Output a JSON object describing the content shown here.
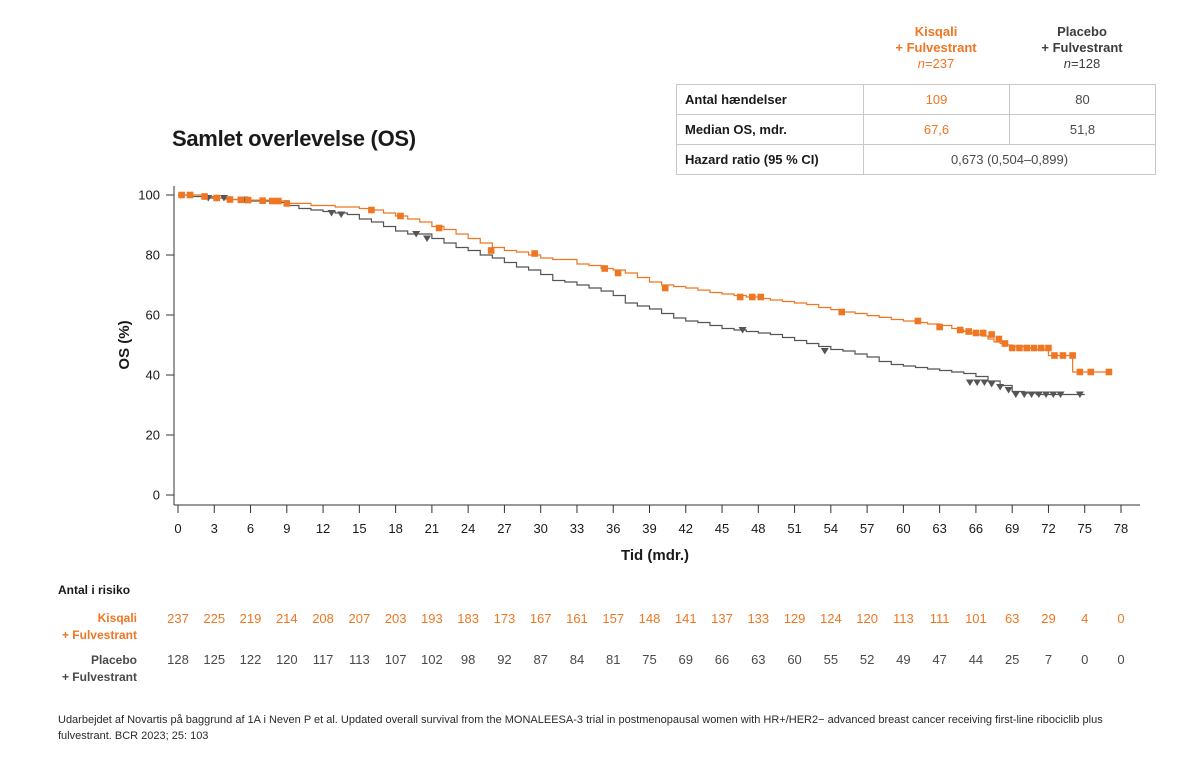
{
  "title": "Samlet overlevelse (OS)",
  "table": {
    "kisqali_header": [
      "Kisqali",
      "+ Fulvestrant"
    ],
    "kisqali_n_prefix": "n",
    "kisqali_n_value": "=237",
    "placebo_header": [
      "Placebo",
      "+ Fulvestrant"
    ],
    "placebo_n_prefix": "n",
    "placebo_n_value": "=128",
    "rows": [
      {
        "label": "Antal hændelser",
        "kisqali": "109",
        "placebo": "80"
      },
      {
        "label": "Median OS, mdr.",
        "kisqali": "67,6",
        "placebo": "51,8"
      }
    ],
    "hr_label": "Hazard ratio (95 % CI)",
    "hr_value": "0,673 (0,504–0,899)"
  },
  "colors": {
    "kisqali": "#ef7622",
    "placebo": "#555555",
    "axis": "#333333"
  },
  "chart_data": {
    "type": "line",
    "title": "Samlet overlevelse (OS)",
    "xlabel": "Tid (mdr.)",
    "ylabel": "OS (%)",
    "xlim": [
      0,
      78
    ],
    "ylim": [
      0,
      100
    ],
    "xticks": [
      0,
      3,
      6,
      9,
      12,
      15,
      18,
      21,
      24,
      27,
      30,
      33,
      36,
      39,
      42,
      45,
      48,
      51,
      54,
      57,
      60,
      63,
      66,
      69,
      72,
      75,
      78
    ],
    "yticks": [
      0,
      20,
      40,
      60,
      80,
      100
    ],
    "series": [
      {
        "name": "Kisqali + Fulvestrant",
        "color": "#ef7622",
        "marker": "square",
        "x": [
          0,
          1,
          2,
          3,
          4,
          6,
          8,
          9,
          11,
          13,
          15,
          16,
          17,
          18,
          19,
          20,
          21,
          22,
          23,
          24,
          25,
          26,
          27,
          28,
          29,
          30,
          31,
          33,
          34,
          35,
          36,
          37,
          38,
          39,
          40,
          41,
          42,
          43,
          44,
          45,
          46,
          47,
          48,
          49,
          50,
          51,
          52,
          53,
          54,
          55,
          56,
          57,
          58,
          59,
          60,
          61,
          62,
          63,
          64,
          64.5,
          65,
          65.5,
          66,
          66.5,
          67,
          67.5,
          68,
          68.5,
          69,
          70,
          71,
          72,
          73,
          74,
          75,
          77
        ],
        "y": [
          100,
          100,
          99.5,
          99,
          98.5,
          98.3,
          98,
          97.2,
          96.5,
          96,
          95.5,
          95,
          94,
          93,
          92,
          91,
          89.5,
          88.5,
          87,
          85.5,
          84,
          82.5,
          81.5,
          81,
          80,
          79,
          78.5,
          77,
          76.5,
          75.5,
          75,
          74,
          72.5,
          71,
          70,
          69.5,
          69,
          68.3,
          67.5,
          67,
          66.5,
          66,
          65.5,
          65,
          64.5,
          64,
          63.5,
          62.5,
          61.8,
          61,
          60.5,
          59.8,
          59.2,
          58.5,
          58,
          57.5,
          57,
          56.5,
          55.5,
          55,
          54.5,
          54,
          53.5,
          53,
          52,
          51,
          50.5,
          50,
          49.5,
          49,
          48.5,
          46.5,
          46.5,
          41,
          41,
          41
        ],
        "censor_x": [
          0.3,
          1,
          2.2,
          3.2,
          4.3,
          5.2,
          5.8,
          7,
          7.8,
          8.3,
          9,
          16,
          18.4,
          21.6,
          25.9,
          29.5,
          35.3,
          36.4,
          40.3,
          46.5,
          47.5,
          48.2,
          54.9,
          61.2,
          63,
          64.7,
          65.4,
          66,
          66.6,
          67.3,
          67.9,
          68.4,
          69,
          69.6,
          70.2,
          70.8,
          71.4,
          72,
          72.5,
          73.2,
          74,
          74.6,
          75.5,
          77
        ],
        "censor_y": [
          100,
          100,
          99.5,
          99,
          98.5,
          98.4,
          98.3,
          98.1,
          98,
          98,
          97.2,
          95,
          93,
          89,
          81.5,
          80.5,
          75.5,
          74,
          69,
          66,
          66,
          66,
          61,
          58,
          56,
          55,
          54.5,
          54,
          54,
          53.5,
          52,
          50.5,
          49,
          49,
          49,
          49,
          49,
          49,
          46.5,
          46.5,
          46.5,
          41,
          41,
          41
        ]
      },
      {
        "name": "Placebo + Fulvestrant",
        "color": "#555555",
        "marker": "triangle",
        "x": [
          0,
          1,
          2,
          3,
          4,
          6,
          8,
          9,
          10,
          11,
          12,
          13,
          14,
          15,
          16,
          17,
          18,
          19,
          20,
          21,
          22,
          23,
          24,
          25,
          26,
          27,
          28,
          29,
          30,
          31,
          32,
          33,
          34,
          35,
          36,
          37,
          38,
          39,
          40,
          41,
          42,
          43,
          44,
          45,
          46,
          47,
          48,
          49,
          50,
          51,
          52,
          53,
          54,
          55,
          56,
          57,
          58,
          59,
          60,
          61,
          62,
          63,
          64,
          65,
          66,
          67,
          68,
          69,
          70,
          71,
          72,
          73,
          74,
          75
        ],
        "y": [
          100,
          99.5,
          99,
          99,
          98.5,
          98,
          97.5,
          96.5,
          95.5,
          95,
          94.5,
          94,
          93.5,
          92,
          91,
          89.5,
          88,
          87,
          87,
          85.5,
          84,
          82.5,
          81.5,
          80,
          79,
          77.5,
          76,
          75,
          73.5,
          71.5,
          71,
          70,
          69,
          68,
          66.5,
          64,
          63,
          62,
          60.5,
          59,
          58,
          57.5,
          56.5,
          55.5,
          55,
          54.5,
          54,
          53.5,
          52.5,
          51.5,
          50.5,
          49.5,
          48.5,
          48,
          47,
          46,
          44.5,
          43.5,
          43,
          42.5,
          42,
          41.5,
          41,
          40.5,
          39.5,
          38,
          36.5,
          34.5,
          34,
          33.5,
          33.5,
          33.5,
          33.5,
          33.5
        ],
        "censor_x": [
          2.5,
          3.8,
          5.5,
          12.7,
          13.5,
          19.7,
          20.6,
          46.7,
          53.5,
          65.5,
          66.1,
          66.7,
          67.3,
          68,
          68.7,
          69.3,
          70,
          70.6,
          71.2,
          71.8,
          72.4,
          73,
          74.6
        ],
        "censor_y": [
          99,
          99,
          98.5,
          94,
          93.5,
          87,
          85.5,
          55,
          48,
          37.5,
          37.5,
          37.5,
          37,
          36,
          35,
          33.5,
          33.5,
          33.5,
          33.5,
          33.5,
          33.5,
          33.5,
          33.5
        ]
      }
    ],
    "risk_table": {
      "title": "Antal i risiko",
      "timepoints": [
        0,
        3,
        6,
        9,
        12,
        15,
        18,
        21,
        24,
        27,
        30,
        33,
        36,
        39,
        42,
        45,
        48,
        51,
        54,
        57,
        60,
        63,
        66,
        69,
        72,
        75,
        78
      ],
      "rows": [
        {
          "label": [
            "Kisqali",
            "+ Fulvestrant"
          ],
          "values": [
            "237",
            "225",
            "219",
            "214",
            "208",
            "207",
            "203",
            "193",
            "183",
            "173",
            "167",
            "161",
            "157",
            "148",
            "141",
            "137",
            "133",
            "129",
            "124",
            "120",
            "113",
            "111",
            "101",
            "63",
            "29",
            "4",
            "0"
          ]
        },
        {
          "label": [
            "Placebo",
            "+ Fulvestrant"
          ],
          "values": [
            "128",
            "125",
            "122",
            "120",
            "117",
            "113",
            "107",
            "102",
            "98",
            "92",
            "87",
            "84",
            "81",
            "75",
            "69",
            "66",
            "63",
            "60",
            "55",
            "52",
            "49",
            "47",
            "44",
            "25",
            "7",
            "0",
            "0"
          ]
        }
      ]
    }
  },
  "footnote": "Udarbejdet af Novartis på baggrund af 1A i Neven P et al. Updated overall survival from the MONALEESA-3 trial in postmenopausal women with HR+/HER2− advanced breast cancer receiving first-line ribociclib plus fulvestrant. BCR 2023; 25: 103"
}
